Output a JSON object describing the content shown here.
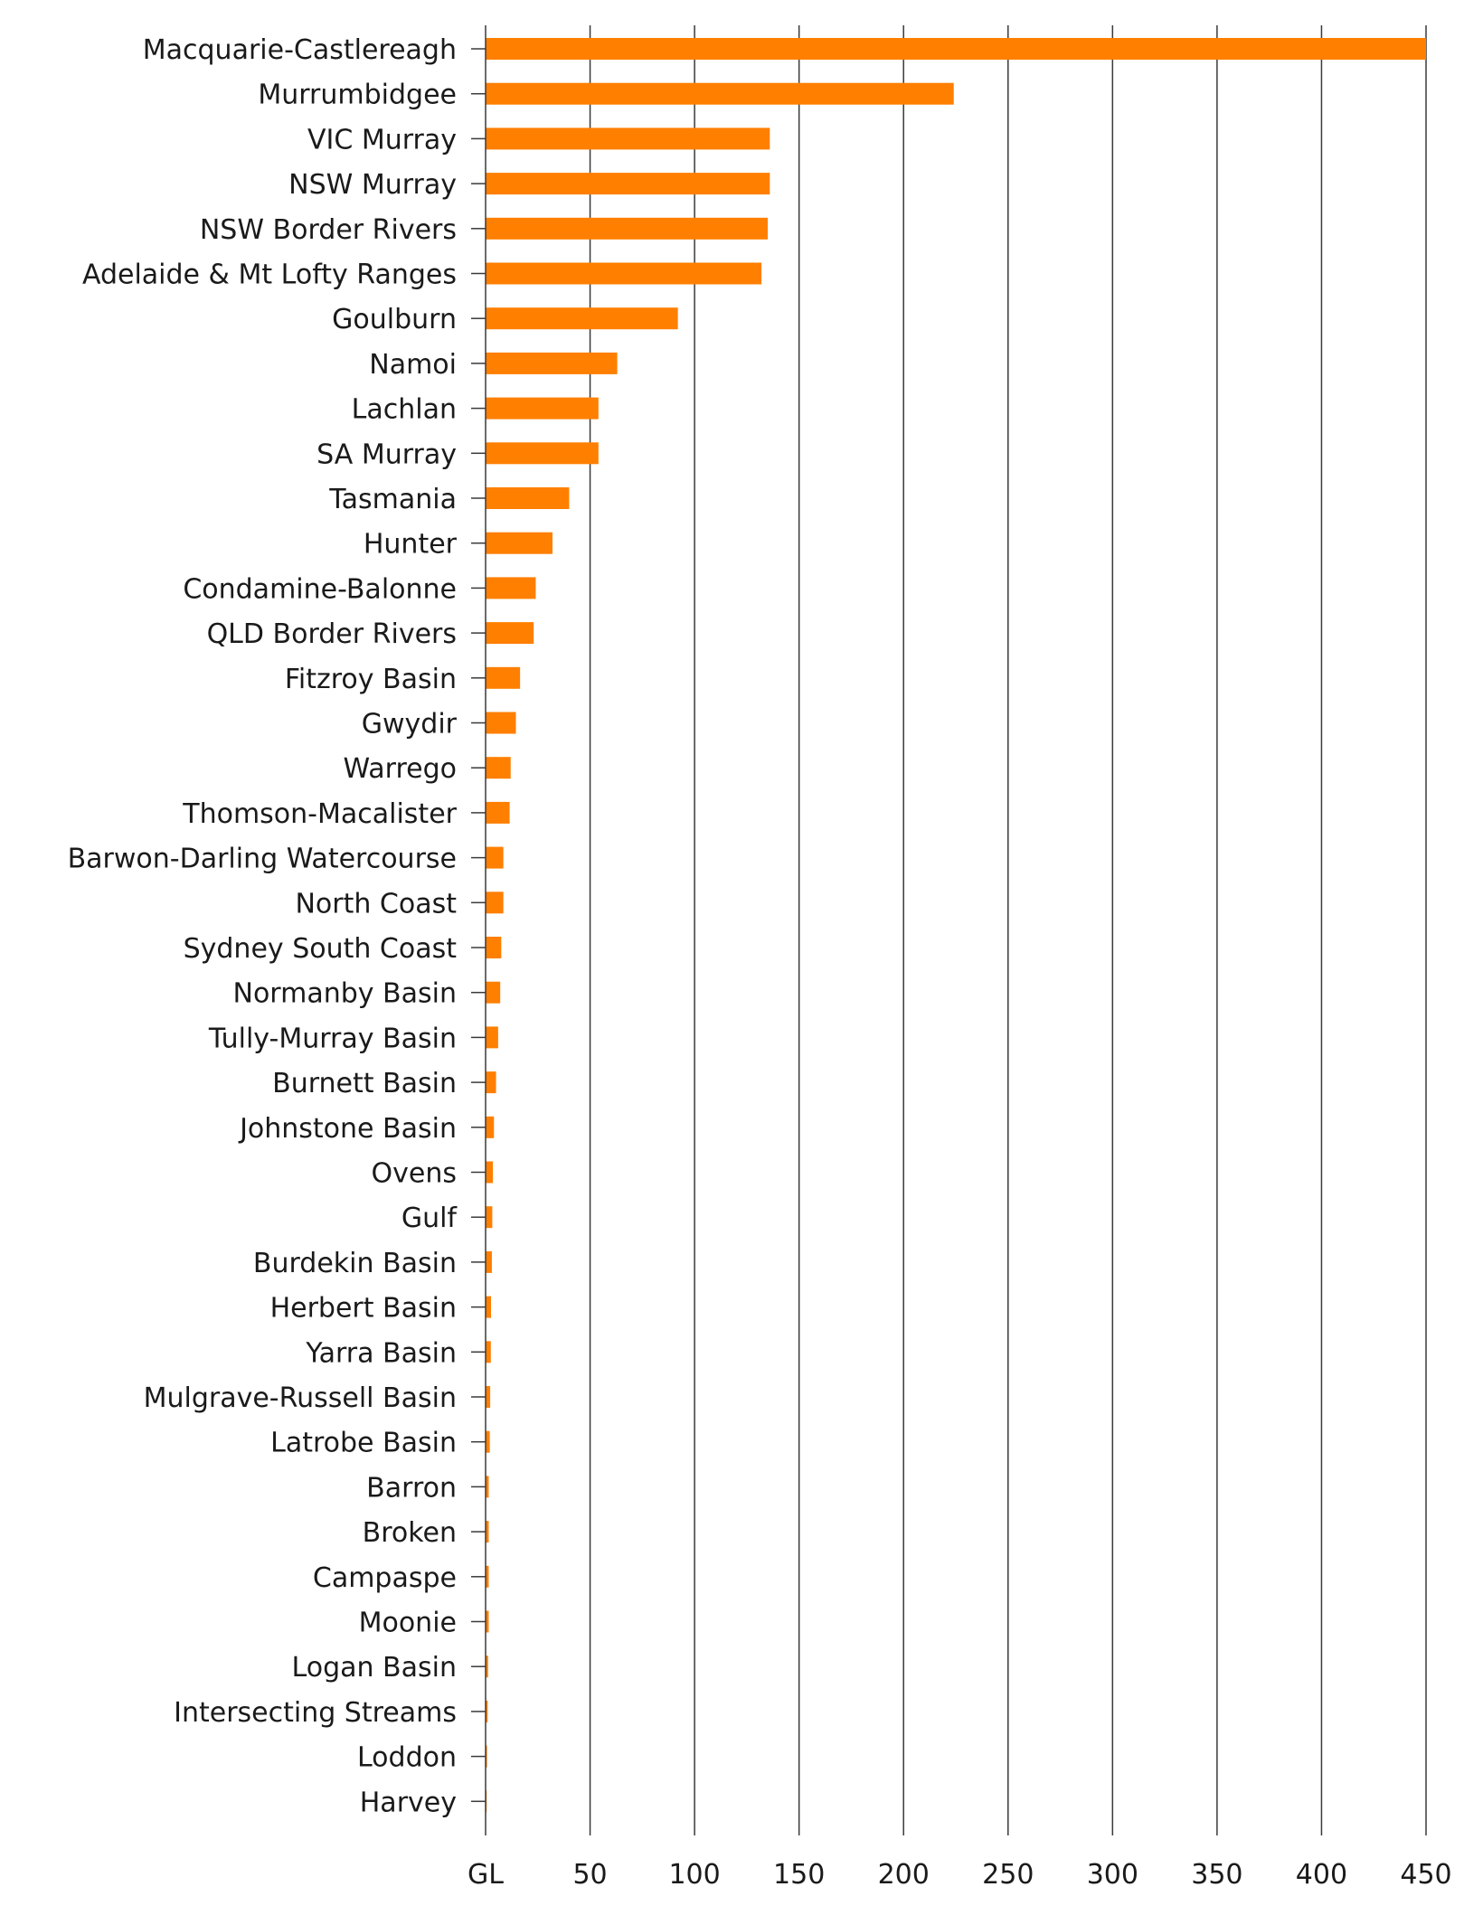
{
  "chart_data": {
    "type": "bar",
    "orientation": "horizontal",
    "unit_label": "GL",
    "xlim": [
      0,
      450
    ],
    "x_ticks": [
      50,
      100,
      150,
      200,
      250,
      300,
      350,
      400,
      450
    ],
    "grid": true,
    "bar_color": "#ff7f00",
    "categories": [
      "Macquarie-Castlereagh",
      "Murrumbidgee",
      "VIC Murray",
      "NSW Murray",
      "NSW Border Rivers",
      "Adelaide & Mt Lofty Ranges",
      "Goulburn",
      "Namoi",
      "Lachlan",
      "SA Murray",
      "Tasmania",
      "Hunter",
      "Condamine-Balonne",
      "QLD Border Rivers",
      "Fitzroy Basin",
      "Gwydir",
      "Warrego",
      "Thomson-Macalister",
      "Barwon-Darling Watercourse",
      "North Coast",
      "Sydney South Coast",
      "Normanby Basin",
      "Tully-Murray Basin",
      "Burnett Basin",
      "Johnstone Basin",
      "Ovens",
      "Gulf",
      "Burdekin Basin",
      "Herbert Basin",
      "Yarra Basin",
      "Mulgrave-Russell Basin",
      "Latrobe Basin",
      "Barron",
      "Broken",
      "Campaspe",
      "Moonie",
      "Logan Basin",
      "Intersecting Streams",
      "Loddon",
      "Harvey"
    ],
    "values": [
      450,
      224,
      136,
      136,
      135,
      132,
      92,
      63,
      54,
      54,
      40,
      32,
      24,
      23,
      16.5,
      14.5,
      12,
      11.5,
      8.5,
      8.5,
      7.5,
      7,
      6,
      5,
      4,
      3.5,
      3.2,
      3,
      2.6,
      2.5,
      2.2,
      2,
      1.5,
      1.5,
      1.5,
      1.5,
      1.2,
      1,
      0.7,
      0.5
    ]
  }
}
